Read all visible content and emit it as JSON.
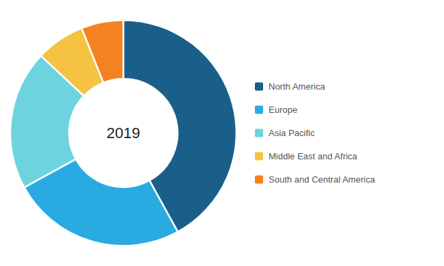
{
  "chart_data": {
    "type": "donut",
    "categories": [
      "North America",
      "Europe",
      "Asia Pacific",
      "Middle East and Africa",
      "South and Central America"
    ],
    "values": [
      42,
      25,
      20,
      7,
      6
    ],
    "colors": [
      "#1a5f8a",
      "#29abe2",
      "#6dd4df",
      "#f5c242",
      "#f58220"
    ],
    "annotations": [
      "2019"
    ],
    "legend": "right"
  }
}
